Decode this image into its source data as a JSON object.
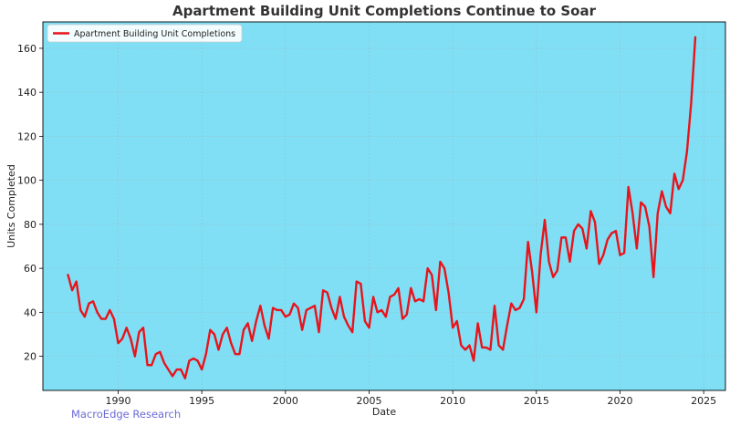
{
  "chart_data": {
    "type": "line",
    "title": "Apartment Building Unit Completions Continue to Soar",
    "xlabel": "Date",
    "ylabel": "Units Completed",
    "xlim": [
      1985.5,
      2026.3
    ],
    "ylim": [
      4.5,
      172
    ],
    "x_ticks": [
      1990,
      1995,
      2000,
      2005,
      2010,
      2015,
      2020,
      2025
    ],
    "y_ticks": [
      20,
      40,
      60,
      80,
      100,
      120,
      140,
      160
    ],
    "grid": true,
    "legend": {
      "position": "top-left",
      "entries": [
        "Apartment Building Unit Completions"
      ]
    },
    "annotation": "MacroEdge Research",
    "colors": {
      "plot_background": "#80dff5",
      "line": "#e8141c",
      "frame": "#000000"
    },
    "series": [
      {
        "name": "Apartment Building Unit Completions",
        "x": [
          1987.0,
          1987.25,
          1987.5,
          1987.75,
          1988.0,
          1988.25,
          1988.5,
          1988.75,
          1989.0,
          1989.25,
          1989.5,
          1989.75,
          1990.0,
          1990.25,
          1990.5,
          1990.75,
          1991.0,
          1991.25,
          1991.5,
          1991.75,
          1992.0,
          1992.25,
          1992.5,
          1992.75,
          1993.0,
          1993.25,
          1993.5,
          1993.75,
          1994.0,
          1994.25,
          1994.5,
          1994.75,
          1995.0,
          1995.25,
          1995.5,
          1995.75,
          1996.0,
          1996.25,
          1996.5,
          1996.75,
          1997.0,
          1997.25,
          1997.5,
          1997.75,
          1998.0,
          1998.25,
          1998.5,
          1998.75,
          1999.0,
          1999.25,
          1999.5,
          1999.75,
          2000.0,
          2000.25,
          2000.5,
          2000.75,
          2001.0,
          2001.25,
          2001.5,
          2001.75,
          2002.0,
          2002.25,
          2002.5,
          2002.75,
          2003.0,
          2003.25,
          2003.5,
          2003.75,
          2004.0,
          2004.25,
          2004.5,
          2004.75,
          2005.0,
          2005.25,
          2005.5,
          2005.75,
          2006.0,
          2006.25,
          2006.5,
          2006.75,
          2007.0,
          2007.25,
          2007.5,
          2007.75,
          2008.0,
          2008.25,
          2008.5,
          2008.75,
          2009.0,
          2009.25,
          2009.5,
          2009.75,
          2010.0,
          2010.25,
          2010.5,
          2010.75,
          2011.0,
          2011.25,
          2011.5,
          2011.75,
          2012.0,
          2012.25,
          2012.5,
          2012.75,
          2013.0,
          2013.25,
          2013.5,
          2013.75,
          2014.0,
          2014.25,
          2014.5,
          2014.75,
          2015.0,
          2015.25,
          2015.5,
          2015.75,
          2016.0,
          2016.25,
          2016.5,
          2016.75,
          2017.0,
          2017.25,
          2017.5,
          2017.75,
          2018.0,
          2018.25,
          2018.5,
          2018.75,
          2019.0,
          2019.25,
          2019.5,
          2019.75,
          2020.0,
          2020.25,
          2020.5,
          2020.75,
          2021.0,
          2021.25,
          2021.5,
          2021.75,
          2022.0,
          2022.25,
          2022.5,
          2022.75,
          2023.0,
          2023.25,
          2023.5,
          2023.75,
          2024.0,
          2024.25,
          2024.5
        ],
        "values": [
          57,
          50,
          54,
          41,
          38,
          44,
          45,
          40,
          37,
          37,
          41,
          37,
          26,
          28,
          33,
          28,
          20,
          31,
          33,
          16,
          16,
          21,
          22,
          17,
          14,
          11,
          14,
          14,
          10,
          18,
          19,
          18,
          14,
          21,
          32,
          30,
          23,
          30,
          33,
          26,
          21,
          21,
          32,
          35,
          27,
          36,
          43,
          34,
          28,
          42,
          41,
          41,
          38,
          39,
          44,
          42,
          32,
          41,
          42,
          43,
          31,
          50,
          49,
          42,
          37,
          47,
          38,
          34,
          31,
          54,
          53,
          36,
          33,
          47,
          40,
          41,
          38,
          47,
          48,
          51,
          37,
          39,
          51,
          45,
          46,
          45,
          60,
          57,
          41,
          63,
          60,
          49,
          33,
          36,
          25,
          23,
          25,
          18,
          35,
          24,
          24,
          23,
          43,
          25,
          23,
          34,
          44,
          41,
          42,
          46,
          72,
          58,
          40,
          66,
          82,
          63,
          56,
          59,
          74,
          74,
          63,
          77,
          80,
          78,
          69,
          86,
          81,
          62,
          66,
          73,
          76,
          77,
          66,
          67,
          97,
          85,
          69,
          90,
          88,
          79,
          56,
          85,
          95,
          88,
          85,
          103,
          96,
          100,
          113,
          135,
          165
        ]
      }
    ]
  }
}
